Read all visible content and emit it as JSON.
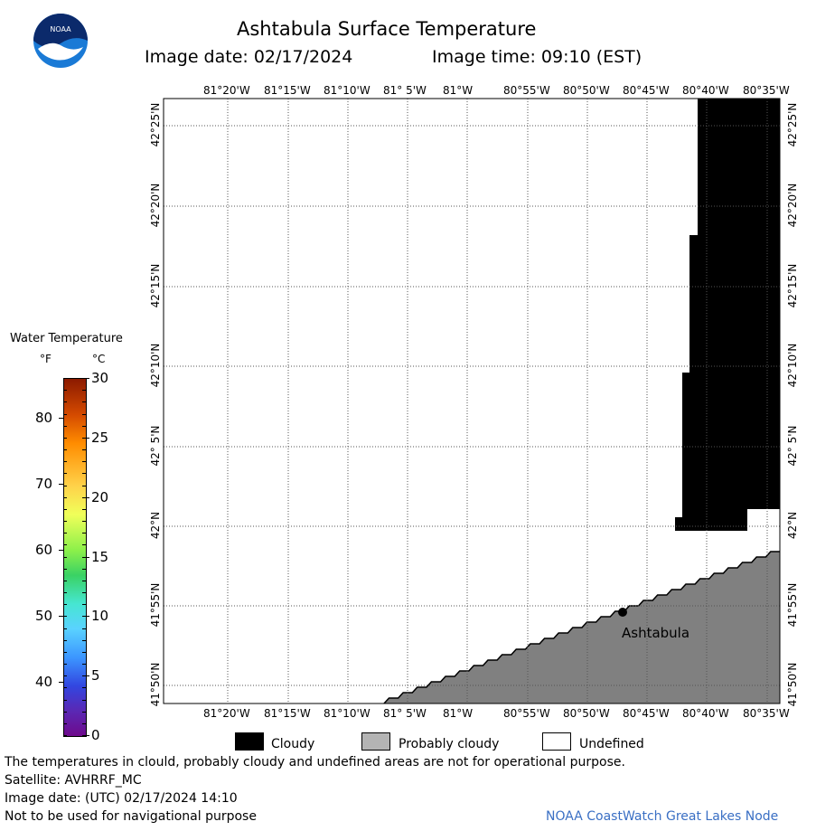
{
  "header": {
    "title": "Ashtabula Surface Temperature",
    "image_date_label": "Image date: 02/17/2024",
    "image_time_label": "Image time: 09:10 (EST)"
  },
  "logo": {
    "text": "NOAA",
    "icon": "noaa-logo-icon"
  },
  "map": {
    "lon_ticks": [
      "81°20'W",
      "81°15'W",
      "81°10'W",
      "81° 5'W",
      "81°W",
      "80°55'W",
      "80°50'W",
      "80°45'W",
      "80°40'W",
      "80°35'W"
    ],
    "lat_ticks": [
      "42°25'N",
      "42°20'N",
      "42°15'N",
      "42°10'N",
      "42° 5'N",
      "42°N",
      "41°55'N",
      "41°50'N"
    ],
    "city_label": "Ashtabula",
    "cloud_color": "#000000",
    "probably_cloudy_color": "#808080",
    "undefined_color": "#ffffff"
  },
  "colorbar": {
    "title": "Water Temperature",
    "unit_f": "°F",
    "unit_c": "°C",
    "f_ticks": [
      "80",
      "70",
      "60",
      "50",
      "40"
    ],
    "c_ticks": [
      "30",
      "25",
      "20",
      "15",
      "10",
      "5",
      "0"
    ]
  },
  "legend": {
    "cloudy": "Cloudy",
    "probably_cloudy": "Probably cloudy",
    "undefined": "Undefined"
  },
  "footer": {
    "line1": "The temperatures in clould, probably cloudy and undefined areas are not for operational purpose.",
    "line2": "Satellite: AVHRRF_MC",
    "line3": "Image date: (UTC) 02/17/2024  14:10",
    "line4": "Not to be used for navigational purpose",
    "credit": "NOAA CoastWatch Great Lakes Node"
  }
}
